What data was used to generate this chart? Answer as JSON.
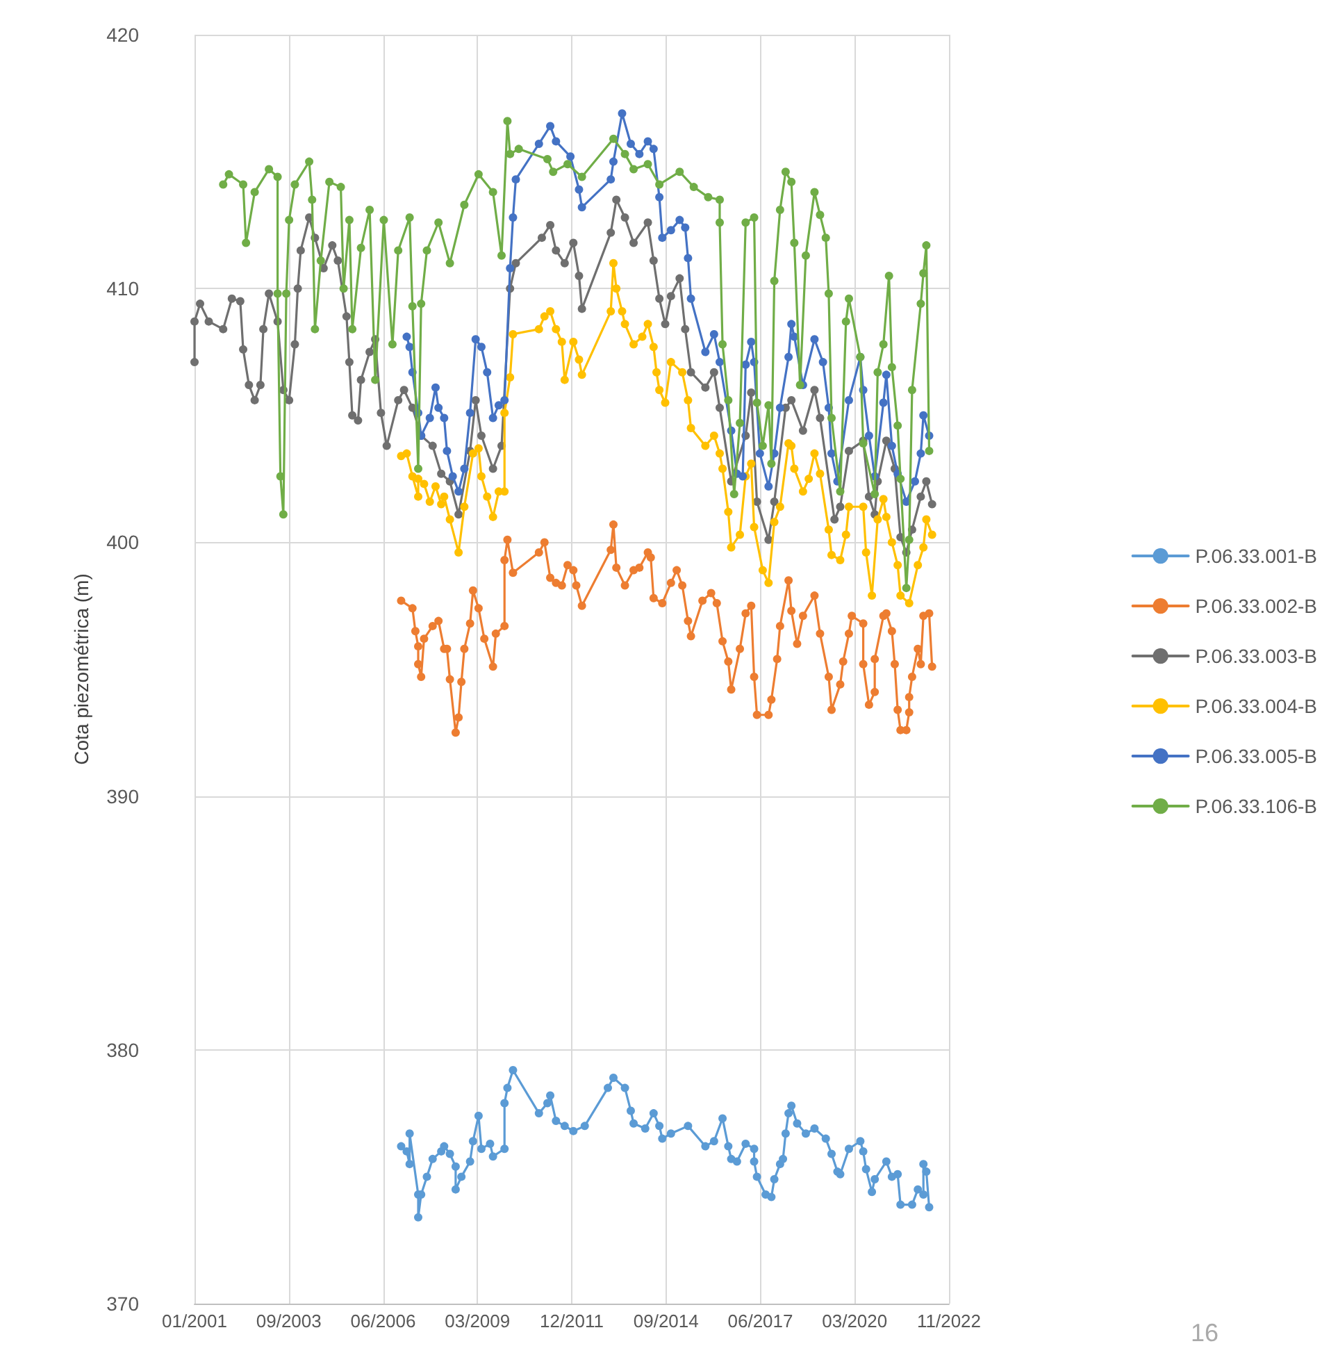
{
  "chart_data": {
    "type": "line",
    "ylabel": "Cota piezométrica (m)",
    "xlim": [
      "2001-01-01",
      "2022-11-27"
    ],
    "xticks": [
      {
        "value": "2001-01-01",
        "label": "01/2001"
      },
      {
        "value": "2003-09-28",
        "label": "09/2003"
      },
      {
        "value": "2006-06-24",
        "label": "06/2006"
      },
      {
        "value": "2009-03-20",
        "label": "03/2009"
      },
      {
        "value": "2011-12-15",
        "label": "12/2011"
      },
      {
        "value": "2014-09-10",
        "label": "09/2014"
      },
      {
        "value": "2017-06-06",
        "label": "06/2017"
      },
      {
        "value": "2020-03-02",
        "label": "03/2020"
      },
      {
        "value": "2022-11-27",
        "label": "11/2022"
      }
    ],
    "ylim": [
      370,
      420
    ],
    "yticks": [
      370,
      380,
      390,
      400,
      410,
      420
    ],
    "grid": true,
    "legend": "right",
    "marker": "circle",
    "line_style": "solid",
    "annotations": [
      "16"
    ],
    "series": [
      {
        "name": "P.06.33.001-B",
        "color": "#5b9bd5",
        "x": [
          "2007-01",
          "2007-03",
          "2007-04",
          "2007-04",
          "2007-07",
          "2007-07",
          "2007-08",
          "2007-10",
          "2007-12",
          "2008-03",
          "2008-04",
          "2008-06",
          "2008-08",
          "2008-08",
          "2008-10",
          "2009-01",
          "2009-02",
          "2009-04",
          "2009-05",
          "2009-08",
          "2009-09",
          "2010-01",
          "2010-01",
          "2010-02",
          "2010-04",
          "2011-01",
          "2011-04",
          "2011-05",
          "2011-07",
          "2011-10",
          "2012-01",
          "2012-05",
          "2013-01",
          "2013-03",
          "2013-07",
          "2013-09",
          "2013-10",
          "2014-02",
          "2014-05",
          "2014-07",
          "2014-08",
          "2014-11",
          "2015-05",
          "2015-11",
          "2016-02",
          "2016-05",
          "2016-07",
          "2016-08",
          "2016-10",
          "2017-01",
          "2017-04",
          "2017-04",
          "2017-05",
          "2017-08",
          "2017-10",
          "2017-11",
          "2018-01",
          "2018-02",
          "2018-03",
          "2018-04",
          "2018-05",
          "2018-07",
          "2018-10",
          "2019-01",
          "2019-05",
          "2019-07",
          "2019-09",
          "2019-10",
          "2020-01",
          "2020-05",
          "2020-06",
          "2020-07",
          "2020-09",
          "2020-10",
          "2021-02",
          "2021-04",
          "2021-06",
          "2021-07",
          "2021-11",
          "2022-01",
          "2022-03",
          "2022-03",
          "2022-04",
          "2022-05"
        ],
        "values": [
          376.2,
          376.0,
          375.5,
          376.7,
          374.3,
          373.4,
          374.3,
          375.0,
          375.7,
          376.0,
          376.2,
          375.9,
          375.4,
          374.5,
          375.0,
          375.6,
          376.4,
          377.4,
          376.1,
          376.3,
          375.8,
          376.1,
          377.9,
          378.5,
          379.2,
          377.5,
          377.9,
          378.2,
          377.2,
          377.0,
          376.8,
          377.0,
          378.5,
          378.9,
          378.5,
          377.6,
          377.1,
          376.9,
          377.5,
          377.0,
          376.5,
          376.7,
          377.0,
          376.2,
          376.4,
          377.3,
          376.2,
          375.7,
          375.6,
          376.3,
          376.1,
          375.6,
          375.0,
          374.3,
          374.2,
          374.9,
          375.5,
          375.7,
          376.7,
          377.5,
          377.8,
          377.1,
          376.7,
          376.9,
          376.5,
          375.9,
          375.2,
          375.1,
          376.1,
          376.4,
          376.0,
          375.3,
          374.4,
          374.9,
          375.6,
          375.0,
          375.1,
          373.9,
          373.9,
          374.5,
          374.3,
          375.5,
          375.2,
          373.8
        ]
      },
      {
        "name": "P.06.33.002-B",
        "color": "#ed7d31",
        "x": [
          "2007-01",
          "2007-05",
          "2007-06",
          "2007-07",
          "2007-07",
          "2007-08",
          "2007-09",
          "2007-12",
          "2008-02",
          "2008-04",
          "2008-05",
          "2008-06",
          "2008-08",
          "2008-09",
          "2008-10",
          "2008-11",
          "2009-01",
          "2009-02",
          "2009-04",
          "2009-06",
          "2009-09",
          "2009-10",
          "2010-01",
          "2010-01",
          "2010-02",
          "2010-04",
          "2011-01",
          "2011-03",
          "2011-05",
          "2011-07",
          "2011-09",
          "2011-11",
          "2012-01",
          "2012-02",
          "2012-04",
          "2013-02",
          "2013-03",
          "2013-04",
          "2013-07",
          "2013-10",
          "2013-12",
          "2014-03",
          "2014-04",
          "2014-05",
          "2014-08",
          "2014-11",
          "2015-01",
          "2015-03",
          "2015-05",
          "2015-06",
          "2015-10",
          "2016-01",
          "2016-03",
          "2016-05",
          "2016-07",
          "2016-08",
          "2016-11",
          "2017-01",
          "2017-03",
          "2017-04",
          "2017-05",
          "2017-09",
          "2017-10",
          "2017-12",
          "2018-01",
          "2018-04",
          "2018-05",
          "2018-07",
          "2018-09",
          "2019-01",
          "2019-03",
          "2019-06",
          "2019-07",
          "2019-10",
          "2019-11",
          "2020-01",
          "2020-02",
          "2020-06",
          "2020-06",
          "2020-08",
          "2020-10",
          "2020-10",
          "2021-01",
          "2021-02",
          "2021-04",
          "2021-05",
          "2021-06",
          "2021-07",
          "2021-09",
          "2021-10",
          "2021-10",
          "2021-11",
          "2022-01",
          "2022-02",
          "2022-03",
          "2022-05",
          "2022-06"
        ],
        "values": [
          397.7,
          397.4,
          396.5,
          395.9,
          395.2,
          394.7,
          396.2,
          396.7,
          396.9,
          395.8,
          395.8,
          394.6,
          392.5,
          393.1,
          394.5,
          395.8,
          396.8,
          398.1,
          397.4,
          396.2,
          395.1,
          396.4,
          396.7,
          399.3,
          400.1,
          398.8,
          399.6,
          400.0,
          398.6,
          398.4,
          398.3,
          399.1,
          398.9,
          398.3,
          397.5,
          399.7,
          400.7,
          399.0,
          398.3,
          398.9,
          399.0,
          399.6,
          399.4,
          397.8,
          397.6,
          398.4,
          398.9,
          398.3,
          396.9,
          396.3,
          397.7,
          398.0,
          397.6,
          396.1,
          395.3,
          394.2,
          395.8,
          397.2,
          397.5,
          394.7,
          393.2,
          393.2,
          393.8,
          395.4,
          396.7,
          398.5,
          397.3,
          396.0,
          397.1,
          397.9,
          396.4,
          394.7,
          393.4,
          394.4,
          395.3,
          396.4,
          397.1,
          396.8,
          395.2,
          393.6,
          394.1,
          395.4,
          397.1,
          397.2,
          396.5,
          395.2,
          393.4,
          392.6,
          392.6,
          393.3,
          393.9,
          394.7,
          395.8,
          395.2,
          397.1,
          397.2,
          395.1
        ]
      },
      {
        "name": "P.06.33.003-B",
        "color": "#6f6f6f",
        "x": [
          "2001-01",
          "2001-01",
          "2001-03",
          "2001-06",
          "2001-11",
          "2002-02",
          "2002-05",
          "2002-06",
          "2002-08",
          "2002-10",
          "2002-12",
          "2003-01",
          "2003-03",
          "2003-06",
          "2003-08",
          "2003-10",
          "2003-12",
          "2004-01",
          "2004-02",
          "2004-05",
          "2004-07",
          "2004-10",
          "2005-01",
          "2005-03",
          "2005-06",
          "2005-07",
          "2005-08",
          "2005-10",
          "2005-11",
          "2006-02",
          "2006-04",
          "2006-06",
          "2006-08",
          "2006-12",
          "2007-02",
          "2007-05",
          "2007-08",
          "2007-12",
          "2008-03",
          "2008-06",
          "2008-09",
          "2009-01",
          "2009-03",
          "2009-05",
          "2009-09",
          "2009-12",
          "2010-03",
          "2010-05",
          "2011-02",
          "2011-05",
          "2011-07",
          "2011-10",
          "2012-01",
          "2012-03",
          "2012-04",
          "2013-02",
          "2013-04",
          "2013-07",
          "2013-10",
          "2014-03",
          "2014-05",
          "2014-07",
          "2014-09",
          "2014-11",
          "2015-02",
          "2015-04",
          "2015-06",
          "2015-11",
          "2016-02",
          "2016-04",
          "2016-08",
          "2017-01",
          "2017-03",
          "2017-05",
          "2017-09",
          "2017-11",
          "2018-03",
          "2018-05",
          "2018-09",
          "2019-01",
          "2019-03",
          "2019-08",
          "2019-10",
          "2020-01",
          "2020-06",
          "2020-08",
          "2020-10",
          "2020-11",
          "2021-02",
          "2021-05",
          "2021-07",
          "2021-09",
          "2021-11",
          "2022-02",
          "2022-04",
          "2022-06"
        ],
        "values": [
          407.1,
          408.7,
          409.4,
          408.7,
          408.4,
          409.6,
          409.5,
          407.6,
          406.2,
          405.6,
          406.2,
          408.4,
          409.8,
          408.7,
          406.0,
          405.6,
          407.8,
          410.0,
          411.5,
          412.8,
          412.0,
          410.8,
          411.7,
          411.1,
          408.9,
          407.1,
          405.0,
          404.8,
          406.4,
          407.5,
          408.0,
          405.1,
          403.8,
          405.6,
          406.0,
          405.3,
          404.2,
          403.8,
          402.7,
          402.4,
          401.1,
          403.6,
          405.6,
          404.2,
          402.9,
          403.8,
          410.0,
          411.0,
          412.0,
          412.5,
          411.5,
          411.0,
          411.8,
          410.5,
          409.2,
          412.2,
          413.5,
          412.8,
          411.8,
          412.6,
          411.1,
          409.6,
          408.6,
          409.7,
          410.4,
          408.4,
          406.7,
          406.1,
          406.7,
          405.3,
          402.4,
          404.2,
          405.9,
          401.6,
          400.1,
          401.6,
          405.3,
          405.6,
          404.4,
          406.0,
          404.9,
          400.9,
          401.4,
          403.6,
          404.0,
          401.8,
          401.1,
          402.4,
          404.0,
          402.9,
          400.2,
          399.6,
          400.5,
          401.8,
          402.4,
          401.5
        ]
      },
      {
        "name": "P.06.33.004-B",
        "color": "#ffc000",
        "x": [
          "2007-01",
          "2007-03",
          "2007-05",
          "2007-07",
          "2007-07",
          "2007-09",
          "2007-11",
          "2008-01",
          "2008-03",
          "2008-04",
          "2008-06",
          "2008-09",
          "2008-11",
          "2009-02",
          "2009-04",
          "2009-05",
          "2009-07",
          "2009-09",
          "2009-11",
          "2010-01",
          "2010-01",
          "2010-03",
          "2010-04",
          "2011-01",
          "2011-03",
          "2011-05",
          "2011-07",
          "2011-09",
          "2011-10",
          "2012-01",
          "2012-03",
          "2012-04",
          "2013-02",
          "2013-03",
          "2013-04",
          "2013-06",
          "2013-07",
          "2013-10",
          "2014-01",
          "2014-03",
          "2014-05",
          "2014-06",
          "2014-07",
          "2014-09",
          "2014-11",
          "2015-03",
          "2015-05",
          "2015-06",
          "2015-11",
          "2016-02",
          "2016-04",
          "2016-05",
          "2016-07",
          "2016-08",
          "2016-11",
          "2017-01",
          "2017-03",
          "2017-04",
          "2017-07",
          "2017-09",
          "2017-11",
          "2018-01",
          "2018-04",
          "2018-05",
          "2018-06",
          "2018-09",
          "2018-11",
          "2019-01",
          "2019-03",
          "2019-06",
          "2019-07",
          "2019-10",
          "2019-12",
          "2020-01",
          "2020-06",
          "2020-07",
          "2020-09",
          "2020-11",
          "2021-01",
          "2021-02",
          "2021-04",
          "2021-06",
          "2021-07",
          "2021-10",
          "2022-01",
          "2022-03",
          "2022-04",
          "2022-06"
        ],
        "values": [
          403.4,
          403.5,
          402.6,
          401.8,
          402.5,
          402.3,
          401.6,
          402.2,
          401.5,
          401.8,
          400.9,
          399.6,
          401.4,
          403.5,
          403.7,
          402.6,
          401.8,
          401.0,
          402.0,
          402.0,
          405.1,
          406.5,
          408.2,
          408.4,
          408.9,
          409.1,
          408.4,
          407.9,
          406.4,
          407.9,
          407.2,
          406.6,
          409.1,
          411.0,
          410.0,
          409.1,
          408.6,
          407.8,
          408.1,
          408.6,
          407.7,
          406.7,
          406.0,
          405.5,
          407.1,
          406.7,
          405.6,
          404.5,
          403.8,
          404.2,
          403.5,
          402.9,
          401.2,
          399.8,
          400.3,
          402.6,
          403.1,
          400.6,
          398.9,
          398.4,
          400.8,
          401.4,
          403.9,
          403.8,
          402.9,
          402.0,
          402.5,
          403.5,
          402.7,
          400.5,
          399.5,
          399.3,
          400.3,
          401.4,
          401.4,
          399.6,
          397.9,
          400.9,
          401.7,
          401.0,
          400.0,
          399.1,
          397.9,
          397.6,
          399.1,
          399.8,
          400.9,
          400.3
        ]
      },
      {
        "name": "P.06.33.005-B",
        "color": "#4472c4",
        "x": [
          "2007-03",
          "2007-04",
          "2007-05",
          "2007-07",
          "2007-08",
          "2007-11",
          "2008-01",
          "2008-02",
          "2008-04",
          "2008-05",
          "2008-07",
          "2008-09",
          "2008-11",
          "2009-01",
          "2009-03",
          "2009-05",
          "2009-07",
          "2009-09",
          "2009-11",
          "2010-01",
          "2010-03",
          "2010-04",
          "2010-05",
          "2011-01",
          "2011-05",
          "2011-07",
          "2011-12",
          "2012-03",
          "2012-04",
          "2013-02",
          "2013-03",
          "2013-06",
          "2013-09",
          "2013-12",
          "2014-03",
          "2014-05",
          "2014-07",
          "2014-08",
          "2014-11",
          "2015-02",
          "2015-04",
          "2015-05",
          "2015-06",
          "2015-11",
          "2016-02",
          "2016-04",
          "2016-08",
          "2016-10",
          "2016-12",
          "2017-01",
          "2017-03",
          "2017-04",
          "2017-06",
          "2017-09",
          "2017-11",
          "2018-01",
          "2018-04",
          "2018-05",
          "2018-06",
          "2018-09",
          "2019-01",
          "2019-04",
          "2019-06",
          "2019-07",
          "2019-09",
          "2020-01",
          "2020-05",
          "2020-06",
          "2020-08",
          "2020-10",
          "2021-01",
          "2021-02",
          "2021-04",
          "2021-06",
          "2021-09",
          "2021-12",
          "2022-02",
          "2022-03",
          "2022-05"
        ],
        "values": [
          408.1,
          407.7,
          406.7,
          405.1,
          404.2,
          404.9,
          406.1,
          405.3,
          404.9,
          403.6,
          402.6,
          402.0,
          402.9,
          405.1,
          408.0,
          407.7,
          406.7,
          404.9,
          405.4,
          405.6,
          410.8,
          412.8,
          414.3,
          415.7,
          416.4,
          415.8,
          415.2,
          413.9,
          413.2,
          414.3,
          415.0,
          416.9,
          415.7,
          415.3,
          415.8,
          415.5,
          413.6,
          412.0,
          412.3,
          412.7,
          412.4,
          411.2,
          409.6,
          407.5,
          408.2,
          407.1,
          404.4,
          402.7,
          402.6,
          407.0,
          407.9,
          407.1,
          403.5,
          402.2,
          403.5,
          405.3,
          407.3,
          408.6,
          408.1,
          406.2,
          408.0,
          407.1,
          405.3,
          403.5,
          402.4,
          405.6,
          407.3,
          406.0,
          404.2,
          402.6,
          405.5,
          406.6,
          403.8,
          402.7,
          401.6,
          402.4,
          403.5,
          405.0,
          404.2
        ]
      },
      {
        "name": "P.06.33.106-B",
        "color": "#70ad47",
        "x": [
          "2001-11",
          "2002-01",
          "2002-06",
          "2002-07",
          "2002-10",
          "2003-03",
          "2003-06",
          "2003-06",
          "2003-07",
          "2003-08",
          "2003-09",
          "2003-10",
          "2003-12",
          "2004-05",
          "2004-06",
          "2004-07",
          "2004-09",
          "2004-12",
          "2005-04",
          "2005-05",
          "2005-07",
          "2005-08",
          "2005-11",
          "2006-02",
          "2006-04",
          "2006-07",
          "2006-10",
          "2006-12",
          "2007-04",
          "2007-05",
          "2007-07",
          "2007-08",
          "2007-10",
          "2008-02",
          "2008-06",
          "2008-11",
          "2009-04",
          "2009-09",
          "2009-12",
          "2010-02",
          "2010-03",
          "2010-06",
          "2011-04",
          "2011-06",
          "2011-11",
          "2012-04",
          "2013-03",
          "2013-07",
          "2013-10",
          "2014-03",
          "2014-07",
          "2015-02",
          "2015-07",
          "2015-12",
          "2016-04",
          "2016-04",
          "2016-05",
          "2016-07",
          "2016-09",
          "2016-11",
          "2017-01",
          "2017-04",
          "2017-05",
          "2017-07",
          "2017-09",
          "2017-10",
          "2017-11",
          "2018-01",
          "2018-03",
          "2018-05",
          "2018-06",
          "2018-08",
          "2018-10",
          "2019-01",
          "2019-03",
          "2019-05",
          "2019-06",
          "2019-07",
          "2019-10",
          "2019-12",
          "2020-01",
          "2020-05",
          "2020-06",
          "2020-10",
          "2020-11",
          "2021-01",
          "2021-03",
          "2021-04",
          "2021-06",
          "2021-07",
          "2021-09",
          "2021-10",
          "2021-11",
          "2022-02",
          "2022-03",
          "2022-04",
          "2022-05"
        ],
        "values": [
          414.1,
          414.5,
          414.1,
          411.8,
          413.8,
          414.7,
          414.4,
          409.8,
          402.6,
          401.1,
          409.8,
          412.7,
          414.1,
          415.0,
          413.5,
          408.4,
          411.1,
          414.2,
          414.0,
          410.0,
          412.7,
          408.4,
          411.6,
          413.1,
          406.4,
          412.7,
          407.8,
          411.5,
          412.8,
          409.3,
          402.9,
          409.4,
          411.5,
          412.6,
          411.0,
          413.3,
          414.5,
          413.8,
          411.3,
          416.6,
          415.3,
          415.5,
          415.1,
          414.6,
          414.9,
          414.4,
          415.9,
          415.3,
          414.7,
          414.9,
          414.1,
          414.6,
          414.0,
          413.6,
          413.5,
          412.6,
          407.8,
          405.6,
          401.9,
          404.7,
          412.6,
          412.8,
          405.5,
          403.8,
          405.4,
          403.1,
          410.3,
          413.1,
          414.6,
          414.2,
          411.8,
          406.2,
          411.3,
          413.8,
          412.9,
          412.0,
          409.8,
          404.9,
          402.0,
          408.7,
          409.6,
          407.3,
          403.9,
          401.9,
          406.7,
          407.8,
          410.5,
          406.9,
          404.6,
          402.5,
          398.2,
          400.1,
          406.0,
          409.4,
          410.6,
          411.7,
          403.6
        ]
      }
    ]
  }
}
